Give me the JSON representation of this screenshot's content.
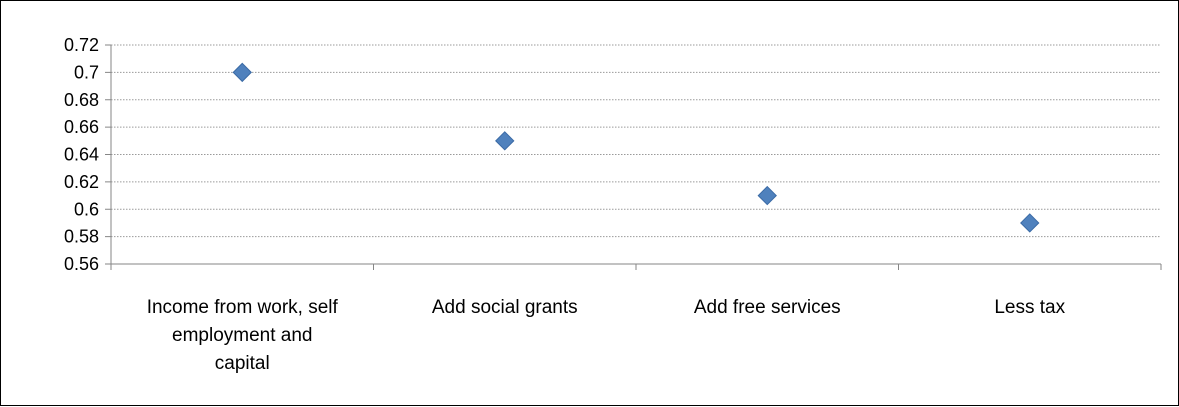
{
  "chart_data": {
    "type": "scatter",
    "title": "",
    "xlabel": "",
    "ylabel": "",
    "categories": [
      "Income from work, self employment and capital",
      "Add social grants",
      "Add free services",
      "Less tax"
    ],
    "category_lines": [
      [
        "Income from work, self",
        "employment and",
        "capital"
      ],
      [
        "Add social grants"
      ],
      [
        "Add free services"
      ],
      [
        "Less tax"
      ]
    ],
    "values": [
      0.7,
      0.65,
      0.61,
      0.59
    ],
    "ylim": [
      0.56,
      0.72
    ],
    "yticks": [
      "0.56",
      "0.58",
      "0.6",
      "0.62",
      "0.64",
      "0.66",
      "0.68",
      "0.7",
      "0.72"
    ],
    "grid": true,
    "legend": "none",
    "marker": "diamond",
    "marker_color": "#4f81bd"
  }
}
